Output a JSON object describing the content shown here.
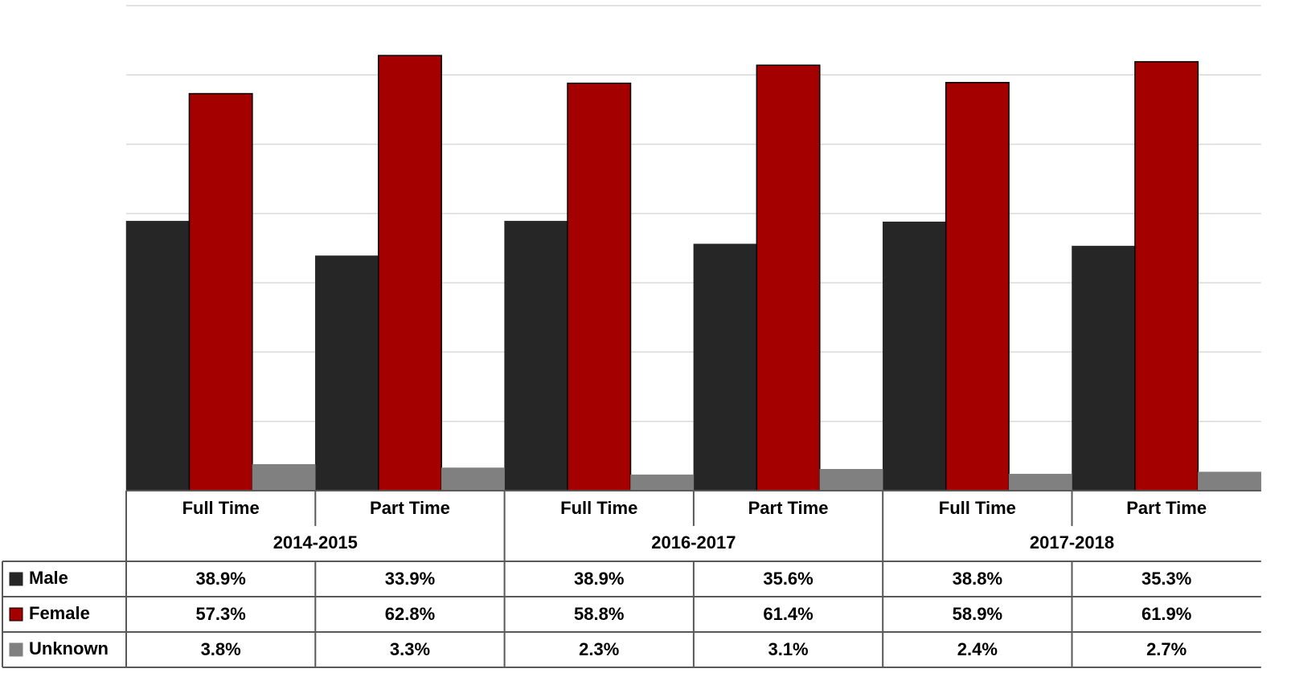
{
  "chart_data": {
    "type": "bar",
    "categories": [
      "Full Time",
      "Part Time",
      "Full Time",
      "Part Time",
      "Full Time",
      "Part Time"
    ],
    "groups": [
      "2014-2015",
      "2016-2017",
      "2017-2018"
    ],
    "series": [
      {
        "name": "Male",
        "color": "#262626",
        "values": [
          38.9,
          33.9,
          38.9,
          35.6,
          38.8,
          35.3
        ],
        "value_labels": [
          "38.9%",
          "33.9%",
          "38.9%",
          "35.6%",
          "38.8%",
          "35.3%"
        ]
      },
      {
        "name": "Female",
        "color": "#a50000",
        "values": [
          57.3,
          62.8,
          58.8,
          61.4,
          58.9,
          61.9
        ],
        "value_labels": [
          "57.3%",
          "62.8%",
          "58.8%",
          "61.4%",
          "58.9%",
          "61.9%"
        ]
      },
      {
        "name": "Unknown",
        "color": "#808080",
        "values": [
          3.8,
          3.3,
          2.3,
          3.1,
          2.4,
          2.7
        ],
        "value_labels": [
          "3.8%",
          "3.3%",
          "2.3%",
          "3.1%",
          "2.4%",
          "2.7%"
        ]
      }
    ],
    "ylim": [
      0,
      70
    ],
    "yticks": [
      0,
      10,
      20,
      30,
      40,
      50,
      60,
      70
    ],
    "grid": true
  }
}
